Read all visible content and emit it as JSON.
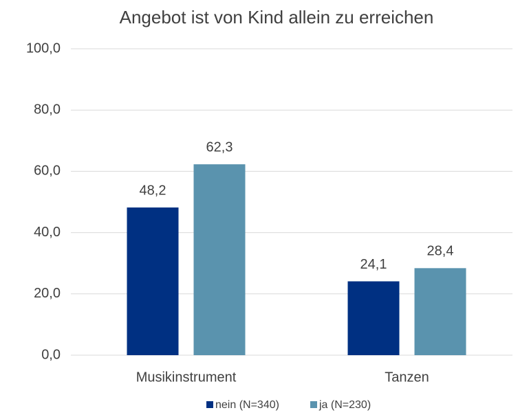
{
  "chart_data": {
    "type": "bar",
    "title": "Angebot ist von Kind allein zu erreichen",
    "categories": [
      "Musikinstrument",
      "Tanzen"
    ],
    "series": [
      {
        "name": "nein (N=340)",
        "color": "#003082",
        "values": [
          48.2,
          24.1
        ],
        "value_labels": [
          "48,2",
          "24,1"
        ]
      },
      {
        "name": "ja (N=230)",
        "color": "#5a93ae",
        "values": [
          62.3,
          28.4
        ],
        "value_labels": [
          "62,3",
          "28,4"
        ]
      }
    ],
    "ylim": [
      0,
      100
    ],
    "yticks": [
      {
        "value": 0,
        "label": "0,0"
      },
      {
        "value": 20,
        "label": "20,0"
      },
      {
        "value": 40,
        "label": "40,0"
      },
      {
        "value": 60,
        "label": "60,0"
      },
      {
        "value": 80,
        "label": "80,0"
      },
      {
        "value": 100,
        "label": "100,0"
      }
    ],
    "grid": true,
    "legend": "bottom"
  }
}
